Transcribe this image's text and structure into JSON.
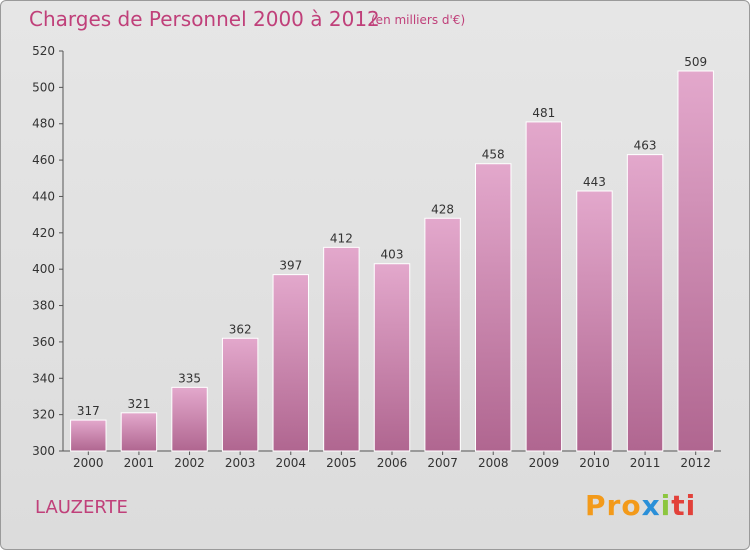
{
  "header": {
    "title": "Charges de Personnel 2000 à 2012",
    "subtitle": "(en milliers d'€)"
  },
  "footer": {
    "place": "LAUZERTE",
    "brand_parts": [
      "Pro",
      "x",
      "i",
      "ti"
    ]
  },
  "colors": {
    "accent": "#c0407a",
    "bar_top": "#e3a8cc",
    "bar_bottom": "#b06690",
    "bar_stroke": "#ffffff"
  },
  "chart_data": {
    "type": "bar",
    "title": "Charges de Personnel 2000 à 2012",
    "subtitle": "(en milliers d'€)",
    "categories": [
      "2000",
      "2001",
      "2002",
      "2003",
      "2004",
      "2005",
      "2006",
      "2007",
      "2008",
      "2009",
      "2010",
      "2011",
      "2012"
    ],
    "values": [
      317,
      321,
      335,
      362,
      397,
      412,
      403,
      428,
      458,
      481,
      443,
      463,
      509
    ],
    "ylim": [
      300,
      520
    ],
    "yticks": [
      300,
      320,
      340,
      360,
      380,
      400,
      420,
      440,
      460,
      480,
      500,
      520
    ],
    "xlabel": "",
    "ylabel": "",
    "grid": false,
    "data_labels": true
  }
}
